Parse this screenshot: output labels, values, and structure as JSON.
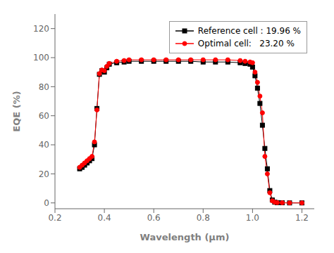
{
  "chart_data": {
    "type": "line",
    "xlabel": "Wavelength (μm)",
    "ylabel": "EQE (%)",
    "x": [
      0.3,
      0.31,
      0.32,
      0.33,
      0.34,
      0.35,
      0.36,
      0.37,
      0.38,
      0.39,
      0.4,
      0.41,
      0.42,
      0.45,
      0.48,
      0.5,
      0.55,
      0.6,
      0.65,
      0.7,
      0.75,
      0.8,
      0.85,
      0.9,
      0.95,
      0.97,
      0.99,
      1.0,
      1.01,
      1.02,
      1.03,
      1.04,
      1.05,
      1.06,
      1.07,
      1.08,
      1.09,
      1.1,
      1.12,
      1.15,
      1.2
    ],
    "series": [
      {
        "name": "Reference cell : 19.96 %",
        "color": "#000000",
        "marker": "square",
        "values": [
          23.5,
          24.5,
          26.0,
          27.5,
          29.0,
          30.5,
          40.0,
          65.0,
          88.5,
          91.0,
          90.0,
          93.0,
          95.5,
          96.5,
          97.0,
          97.5,
          97.5,
          97.5,
          97.5,
          97.5,
          97.5,
          97.0,
          97.0,
          97.0,
          96.5,
          96.0,
          95.5,
          93.5,
          87.5,
          79.0,
          68.5,
          53.5,
          37.5,
          23.5,
          8.5,
          2.0,
          0.5,
          0.2,
          0.1,
          0.0,
          0.0
        ]
      },
      {
        "name": "Optimal cell:   23.20 %",
        "color": "#ff0000",
        "marker": "circle",
        "values": [
          24.5,
          26.0,
          27.5,
          29.0,
          30.5,
          32.0,
          42.0,
          64.0,
          89.0,
          91.5,
          91.0,
          94.0,
          96.0,
          97.5,
          98.0,
          98.5,
          98.5,
          98.5,
          98.5,
          98.5,
          98.5,
          98.5,
          98.5,
          98.5,
          98.0,
          97.5,
          97.0,
          96.5,
          90.0,
          83.0,
          73.5,
          62.0,
          32.0,
          20.0,
          7.0,
          1.5,
          0.5,
          0.2,
          0.1,
          0.0,
          0.0
        ]
      }
    ],
    "xlim": [
      0.2,
      1.25
    ],
    "ylim": [
      -4,
      130
    ],
    "xticks": [
      0.2,
      0.4,
      0.6,
      0.8,
      {
        "value": 1.0,
        "label": "1.0"
      },
      1.2
    ],
    "yticks": [
      0,
      20,
      40,
      60,
      80,
      100,
      120
    ],
    "legend": "upper right",
    "grid": false
  }
}
